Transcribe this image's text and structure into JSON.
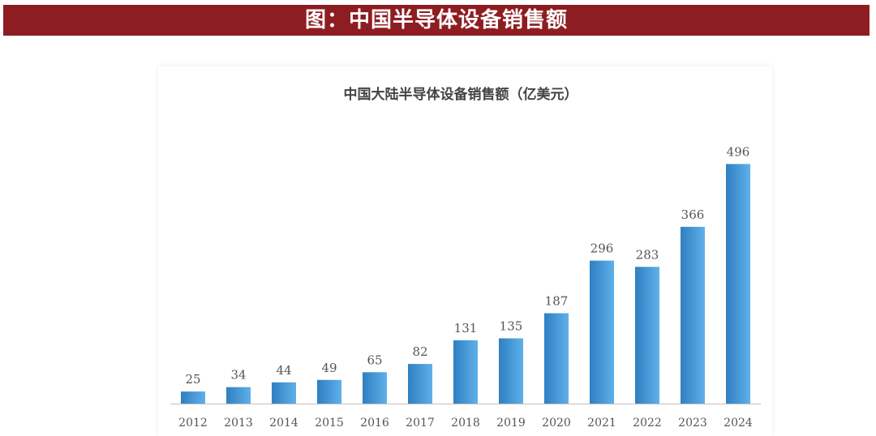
{
  "banner": {
    "title": "图：中国半导体设备销售额"
  },
  "colors": {
    "banner_bg": "#8e1d22",
    "bar_dark": "#2f7fc2",
    "bar_light": "#5fb0ea",
    "axis": "#bfbfbf"
  },
  "chart_data": {
    "type": "bar",
    "title": "中国大陆半导体设备销售额（亿美元）",
    "categories": [
      "2012",
      "2013",
      "2014",
      "2015",
      "2016",
      "2017",
      "2018",
      "2019",
      "2020",
      "2021",
      "2022",
      "2023",
      "2024"
    ],
    "values": [
      25,
      34,
      44,
      49,
      65,
      82,
      131,
      135,
      187,
      296,
      283,
      366,
      496
    ],
    "ylim": [
      0,
      500
    ],
    "grid": false,
    "legend": "none",
    "data_labels": true
  }
}
